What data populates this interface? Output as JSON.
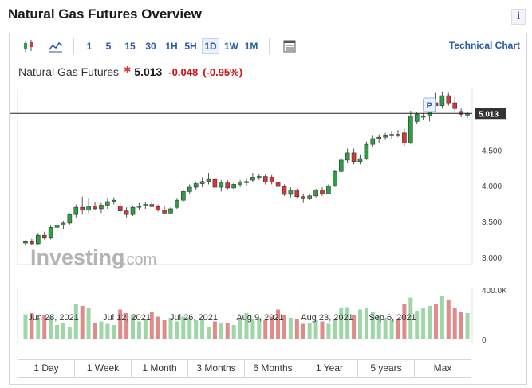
{
  "page": {
    "title": "Natural Gas Futures Overview"
  },
  "toolbar": {
    "intervals": [
      "1",
      "5",
      "15",
      "30",
      "1H",
      "5H",
      "1D",
      "1W",
      "1M"
    ],
    "active_interval": "1D",
    "technical_chart_label": "Technical Chart",
    "icons": [
      "candlestick-chart-icon",
      "line-chart-icon",
      "table-icon"
    ]
  },
  "quote": {
    "name": "Natural Gas Futures",
    "last": "5.013",
    "change": "-0.048",
    "change_pct": "(-0.95%)",
    "down_color": "#d01010"
  },
  "watermark": {
    "text": "Investing",
    "suffix": ".com"
  },
  "range_buttons": [
    "1 Day",
    "1 Week",
    "1 Month",
    "3 Months",
    "6 Months",
    "1 Year",
    "5 years",
    "Max"
  ],
  "chart_data": {
    "type": "candlestick",
    "x_tick_labels": [
      "Jun 28, 2021",
      "Jul 12, 2021",
      "Jul 26, 2021",
      "Aug 9, 2021",
      "Aug 23, 2021",
      "Sep 6, 2021"
    ],
    "y_tick_labels": [
      "5.013",
      "4.500",
      "4.000",
      "3.500",
      "3.000"
    ],
    "y_ticks": [
      4.5,
      4.0,
      3.5,
      3.0
    ],
    "ylim": [
      2.9,
      5.35
    ],
    "last_price": 5.013,
    "last_price_label": "5.013",
    "marker_label": "P",
    "volume_axis_labels": [
      "400.0K",
      "0"
    ],
    "volume_max": 400000,
    "up_color": "#2ea043",
    "down_color": "#d43838",
    "up_volume_color": "#9fd6a8",
    "down_volume_color": "#e08a8a",
    "candles": [
      {
        "o": 3.2,
        "h": 3.24,
        "l": 3.16,
        "c": 3.22,
        "v": 210000
      },
      {
        "o": 3.22,
        "h": 3.26,
        "l": 3.17,
        "c": 3.19,
        "v": 220000
      },
      {
        "o": 3.19,
        "h": 3.34,
        "l": 3.17,
        "c": 3.31,
        "v": 180000
      },
      {
        "o": 3.31,
        "h": 3.36,
        "l": 3.25,
        "c": 3.27,
        "v": 200000
      },
      {
        "o": 3.27,
        "h": 3.45,
        "l": 3.25,
        "c": 3.42,
        "v": 190000
      },
      {
        "o": 3.42,
        "h": 3.48,
        "l": 3.38,
        "c": 3.45,
        "v": 120000
      },
      {
        "o": 3.45,
        "h": 3.5,
        "l": 3.4,
        "c": 3.48,
        "v": 140000
      },
      {
        "o": 3.48,
        "h": 3.62,
        "l": 3.46,
        "c": 3.6,
        "v": 100000
      },
      {
        "o": 3.6,
        "h": 3.74,
        "l": 3.56,
        "c": 3.7,
        "v": 300000
      },
      {
        "o": 3.7,
        "h": 3.85,
        "l": 3.6,
        "c": 3.66,
        "v": 280000
      },
      {
        "o": 3.66,
        "h": 3.82,
        "l": 3.62,
        "c": 3.72,
        "v": 260000
      },
      {
        "o": 3.72,
        "h": 3.78,
        "l": 3.66,
        "c": 3.68,
        "v": 140000
      },
      {
        "o": 3.68,
        "h": 3.76,
        "l": 3.62,
        "c": 3.73,
        "v": 150000
      },
      {
        "o": 3.73,
        "h": 3.82,
        "l": 3.68,
        "c": 3.78,
        "v": 130000
      },
      {
        "o": 3.78,
        "h": 3.84,
        "l": 3.74,
        "c": 3.8,
        "v": 120000
      },
      {
        "o": 3.72,
        "h": 3.76,
        "l": 3.62,
        "c": 3.65,
        "v": 250000
      },
      {
        "o": 3.65,
        "h": 3.7,
        "l": 3.56,
        "c": 3.6,
        "v": 220000
      },
      {
        "o": 3.6,
        "h": 3.72,
        "l": 3.58,
        "c": 3.7,
        "v": 200000
      },
      {
        "o": 3.7,
        "h": 3.76,
        "l": 3.66,
        "c": 3.72,
        "v": 150000
      },
      {
        "o": 3.72,
        "h": 3.77,
        "l": 3.68,
        "c": 3.74,
        "v": 170000
      },
      {
        "o": 3.74,
        "h": 3.78,
        "l": 3.7,
        "c": 3.71,
        "v": 230000
      },
      {
        "o": 3.71,
        "h": 3.74,
        "l": 3.64,
        "c": 3.66,
        "v": 190000
      },
      {
        "o": 3.66,
        "h": 3.72,
        "l": 3.6,
        "c": 3.62,
        "v": 160000
      },
      {
        "o": 3.62,
        "h": 3.7,
        "l": 3.6,
        "c": 3.68,
        "v": 180000
      },
      {
        "o": 3.7,
        "h": 3.82,
        "l": 3.68,
        "c": 3.8,
        "v": 150000
      },
      {
        "o": 3.8,
        "h": 3.95,
        "l": 3.78,
        "c": 3.92,
        "v": 190000
      },
      {
        "o": 3.92,
        "h": 4.02,
        "l": 3.88,
        "c": 3.98,
        "v": 180000
      },
      {
        "o": 3.98,
        "h": 4.06,
        "l": 3.94,
        "c": 4.03,
        "v": 160000
      },
      {
        "o": 4.03,
        "h": 4.12,
        "l": 3.98,
        "c": 4.06,
        "v": 170000
      },
      {
        "o": 4.06,
        "h": 4.18,
        "l": 4.02,
        "c": 4.09,
        "v": 100000
      },
      {
        "o": 4.09,
        "h": 4.15,
        "l": 3.92,
        "c": 3.98,
        "v": 150000
      },
      {
        "o": 3.98,
        "h": 4.08,
        "l": 3.92,
        "c": 4.04,
        "v": 140000
      },
      {
        "o": 4.04,
        "h": 4.08,
        "l": 3.95,
        "c": 3.97,
        "v": 140000
      },
      {
        "o": 3.97,
        "h": 4.06,
        "l": 3.94,
        "c": 4.02,
        "v": 120000
      },
      {
        "o": 4.02,
        "h": 4.08,
        "l": 3.98,
        "c": 4.05,
        "v": 170000
      },
      {
        "o": 4.05,
        "h": 4.1,
        "l": 4.0,
        "c": 4.06,
        "v": 220000
      },
      {
        "o": 4.08,
        "h": 4.18,
        "l": 4.05,
        "c": 4.12,
        "v": 170000
      },
      {
        "o": 4.12,
        "h": 4.16,
        "l": 4.08,
        "c": 4.13,
        "v": 180000
      },
      {
        "o": 4.13,
        "h": 4.16,
        "l": 4.02,
        "c": 4.05,
        "v": 160000
      },
      {
        "o": 4.12,
        "h": 4.15,
        "l": 4.02,
        "c": 4.05,
        "v": 190000
      },
      {
        "o": 4.05,
        "h": 4.08,
        "l": 3.96,
        "c": 3.99,
        "v": 250000
      },
      {
        "o": 3.99,
        "h": 4.02,
        "l": 3.86,
        "c": 3.88,
        "v": 200000
      },
      {
        "o": 3.88,
        "h": 3.98,
        "l": 3.84,
        "c": 3.94,
        "v": 180000
      },
      {
        "o": 3.94,
        "h": 3.96,
        "l": 3.82,
        "c": 3.85,
        "v": 170000
      },
      {
        "o": 3.85,
        "h": 3.88,
        "l": 3.76,
        "c": 3.82,
        "v": 130000
      },
      {
        "o": 3.82,
        "h": 3.88,
        "l": 3.8,
        "c": 3.86,
        "v": 140000
      },
      {
        "o": 3.86,
        "h": 3.96,
        "l": 3.84,
        "c": 3.94,
        "v": 160000
      },
      {
        "o": 3.94,
        "h": 3.98,
        "l": 3.86,
        "c": 3.89,
        "v": 150000
      },
      {
        "o": 3.89,
        "h": 4.02,
        "l": 3.88,
        "c": 4.0,
        "v": 130000
      },
      {
        "o": 4.0,
        "h": 4.22,
        "l": 3.98,
        "c": 4.2,
        "v": 170000
      },
      {
        "o": 4.2,
        "h": 4.4,
        "l": 4.18,
        "c": 4.36,
        "v": 260000
      },
      {
        "o": 4.36,
        "h": 4.52,
        "l": 4.32,
        "c": 4.46,
        "v": 270000
      },
      {
        "o": 4.46,
        "h": 4.52,
        "l": 4.3,
        "c": 4.34,
        "v": 200000
      },
      {
        "o": 4.34,
        "h": 4.44,
        "l": 4.3,
        "c": 4.38,
        "v": 250000
      },
      {
        "o": 4.38,
        "h": 4.62,
        "l": 4.36,
        "c": 4.58,
        "v": 260000
      },
      {
        "o": 4.58,
        "h": 4.7,
        "l": 4.54,
        "c": 4.66,
        "v": 230000
      },
      {
        "o": 4.66,
        "h": 4.72,
        "l": 4.6,
        "c": 4.68,
        "v": 200000
      },
      {
        "o": 4.68,
        "h": 4.74,
        "l": 4.64,
        "c": 4.7,
        "v": 180000
      },
      {
        "o": 4.7,
        "h": 4.76,
        "l": 4.66,
        "c": 4.72,
        "v": 160000
      },
      {
        "o": 4.72,
        "h": 4.78,
        "l": 4.68,
        "c": 4.7,
        "v": 170000
      },
      {
        "o": 4.74,
        "h": 4.8,
        "l": 4.56,
        "c": 4.6,
        "v": 300000
      },
      {
        "o": 4.6,
        "h": 5.05,
        "l": 4.58,
        "c": 4.98,
        "v": 350000
      },
      {
        "o": 4.9,
        "h": 5.03,
        "l": 4.86,
        "c": 5.0,
        "v": 240000
      },
      {
        "o": 4.96,
        "h": 5.02,
        "l": 4.92,
        "c": 4.98,
        "v": 260000
      },
      {
        "o": 4.98,
        "h": 5.22,
        "l": 4.9,
        "c": 5.16,
        "v": 280000
      },
      {
        "o": 5.16,
        "h": 5.3,
        "l": 5.04,
        "c": 5.12,
        "v": 300000
      },
      {
        "o": 5.12,
        "h": 5.32,
        "l": 5.08,
        "c": 5.26,
        "v": 360000
      },
      {
        "o": 5.26,
        "h": 5.3,
        "l": 5.12,
        "c": 5.16,
        "v": 330000
      },
      {
        "o": 5.16,
        "h": 5.24,
        "l": 5.04,
        "c": 5.08,
        "v": 260000
      },
      {
        "o": 5.04,
        "h": 5.08,
        "l": 4.96,
        "c": 5.0,
        "v": 230000
      },
      {
        "o": 4.99,
        "h": 5.04,
        "l": 4.95,
        "c": 5.01,
        "v": 220000
      }
    ]
  }
}
